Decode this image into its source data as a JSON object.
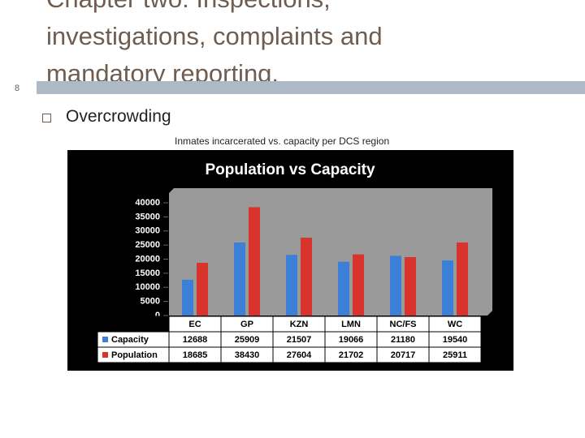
{
  "slide": {
    "title": "Chapter two: Inspections, investigations, complaints and mandatory reporting.",
    "number": "8",
    "bullet": "Overcrowding",
    "caption": "Inmates incarcerated vs. capacity per DCS region"
  },
  "chart_data": {
    "type": "bar",
    "title": "Population vs Capacity",
    "categories": [
      "EC",
      "GP",
      "KZN",
      "LMN",
      "NC/FS",
      "WC"
    ],
    "series": [
      {
        "name": "Capacity",
        "color": "#3b7fd6",
        "values": [
          12688,
          25909,
          21507,
          19066,
          21180,
          19540
        ]
      },
      {
        "name": "Population",
        "color": "#d8342c",
        "values": [
          18685,
          38430,
          27604,
          21702,
          20717,
          25911
        ]
      }
    ],
    "ylim": [
      0,
      40000
    ],
    "yticks": [
      0,
      5000,
      10000,
      15000,
      20000,
      25000,
      30000,
      35000,
      40000
    ],
    "grid": false
  }
}
